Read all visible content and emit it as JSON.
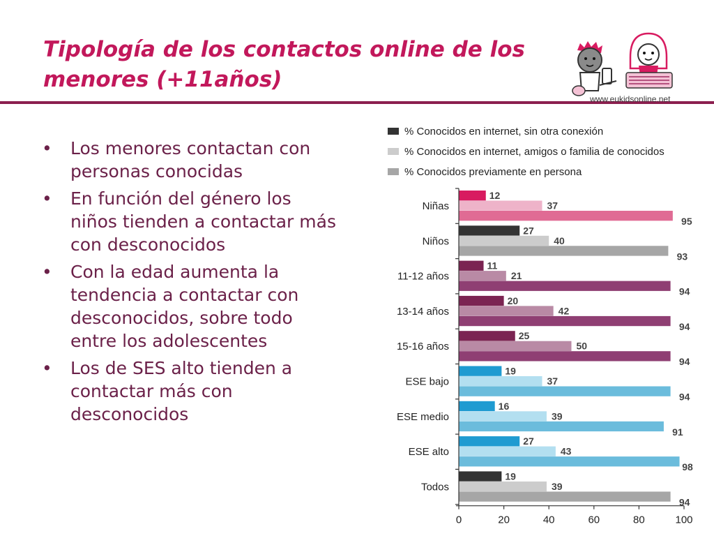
{
  "slide": {
    "title": "Tipología de los contactos online de los menores (+11años)",
    "bullets": [
      "Los menores contactan con personas conocidas",
      "En función del género los niños tienden a contactar más con desconocidos",
      "Con la edad aumenta la tendencia a contactar con desconocidos, sobre todo entre los adolescentes",
      "Los de SES alto tienden a contactar más con desconocidos"
    ],
    "bullet_symbol": "•",
    "logo_url": "www.eukidsonline.net",
    "colors": {
      "title": "#c2185b",
      "rule": "#8b1f4f",
      "bullet_text": "#6b2149"
    }
  },
  "chart_data": {
    "type": "bar",
    "orientation": "horizontal",
    "categories": [
      "Niñas",
      "Niños",
      "11-12 años",
      "13-14 años",
      "15-16 años",
      "ESE bajo",
      "ESE medio",
      "ESE alto",
      "Todos"
    ],
    "series": [
      {
        "name": "% Conocidos en internet, sin otra conexión",
        "legend_color": "#333333",
        "values": [
          12,
          27,
          11,
          20,
          25,
          19,
          16,
          27,
          19
        ],
        "colors": [
          "#d81b60",
          "#333333",
          "#7b2452",
          "#7b2452",
          "#7b2452",
          "#1f9bd1",
          "#1f9bd1",
          "#1f9bd1",
          "#333333"
        ]
      },
      {
        "name": "% Conocidos en internet, amigos o familia de conocidos",
        "legend_color": "#cccccc",
        "values": [
          37,
          40,
          21,
          42,
          50,
          37,
          39,
          43,
          39
        ],
        "colors": [
          "#eeb3c9",
          "#cccccc",
          "#b98aa5",
          "#b98aa5",
          "#b98aa5",
          "#b3dff0",
          "#b3dff0",
          "#b3dff0",
          "#cccccc"
        ]
      },
      {
        "name": "% Conocidos previamente en persona",
        "legend_color": "#a6a6a6",
        "values": [
          95,
          93,
          94,
          94,
          94,
          94,
          91,
          98,
          94
        ],
        "colors": [
          "#e06b94",
          "#a6a6a6",
          "#8f3f73",
          "#8f3f73",
          "#8f3f73",
          "#6bbcdc",
          "#6bbcdc",
          "#6bbcdc",
          "#a6a6a6"
        ]
      }
    ],
    "xlim": [
      0,
      100
    ],
    "xticks": [
      0,
      20,
      40,
      60,
      80,
      100
    ],
    "title": "",
    "xlabel": "",
    "ylabel": "",
    "legend": "top",
    "grid": false
  }
}
